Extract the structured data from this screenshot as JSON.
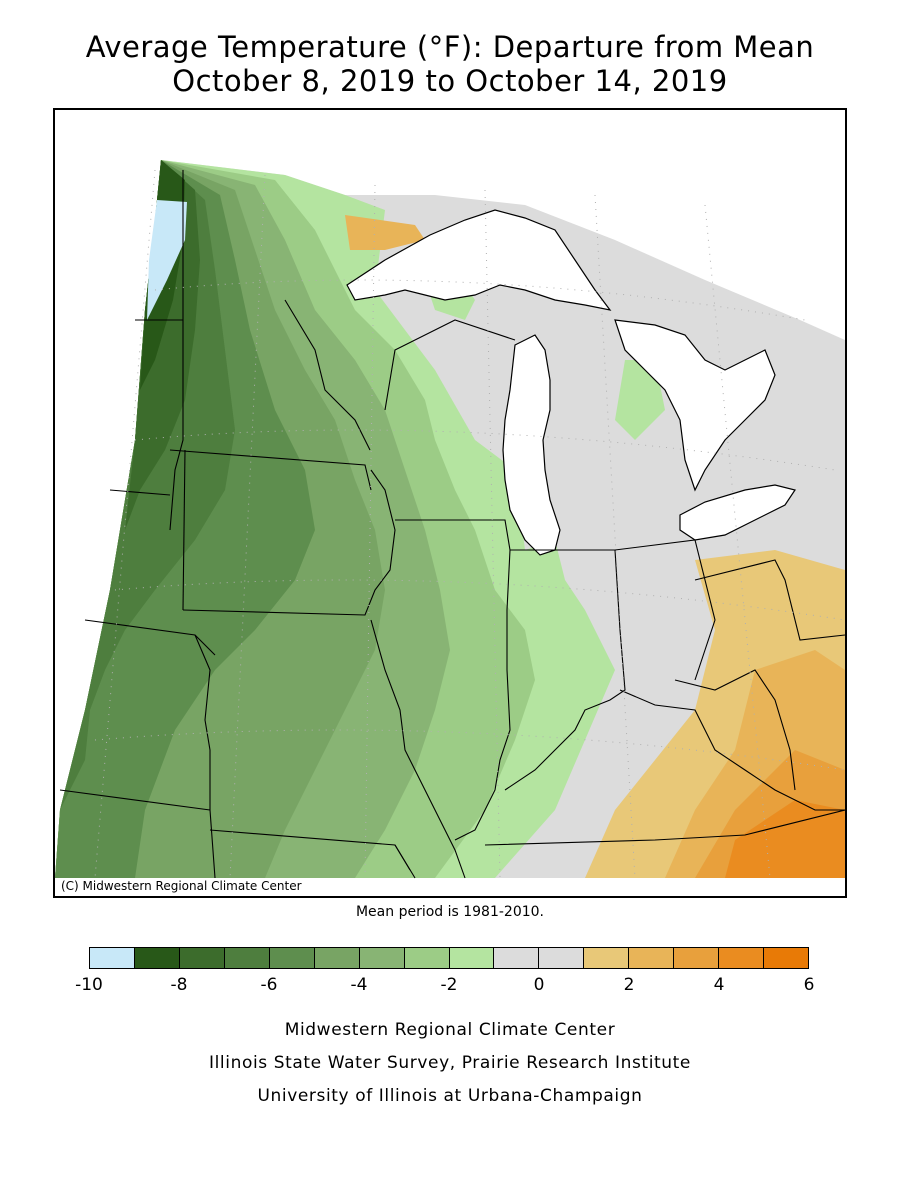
{
  "title_line1": "Average Temperature (°F): Departure from Mean",
  "title_line2": "October 8, 2019 to October 14, 2019",
  "copyright": "(C) Midwestern Regional Climate Center",
  "mean_period": "Mean period is 1981-2010.",
  "legend": {
    "colors": [
      "#c8e8f8",
      "#285818",
      "#3c6c2c",
      "#4e7e3e",
      "#5e8e4e",
      "#78a464",
      "#88b474",
      "#9ccc86",
      "#b4e4a0",
      "#dcdcdc",
      "#dcdcdc",
      "#e8c878",
      "#e8b458",
      "#e8a03c",
      "#ea8c20",
      "#e87a06"
    ],
    "labels": [
      "-10",
      "-8",
      "-6",
      "-4",
      "-2",
      "0",
      "2",
      "4",
      "6"
    ],
    "label_values": [
      -10,
      -8,
      -6,
      -4,
      -2,
      0,
      2,
      4,
      6
    ],
    "min": -10,
    "max": 6
  },
  "footer_line1": "Midwestern Regional Climate Center",
  "footer_line2": "Illinois State Water Survey, Prairie Research Institute",
  "footer_line3": "University of Illinois at Urbana-Champaign"
}
